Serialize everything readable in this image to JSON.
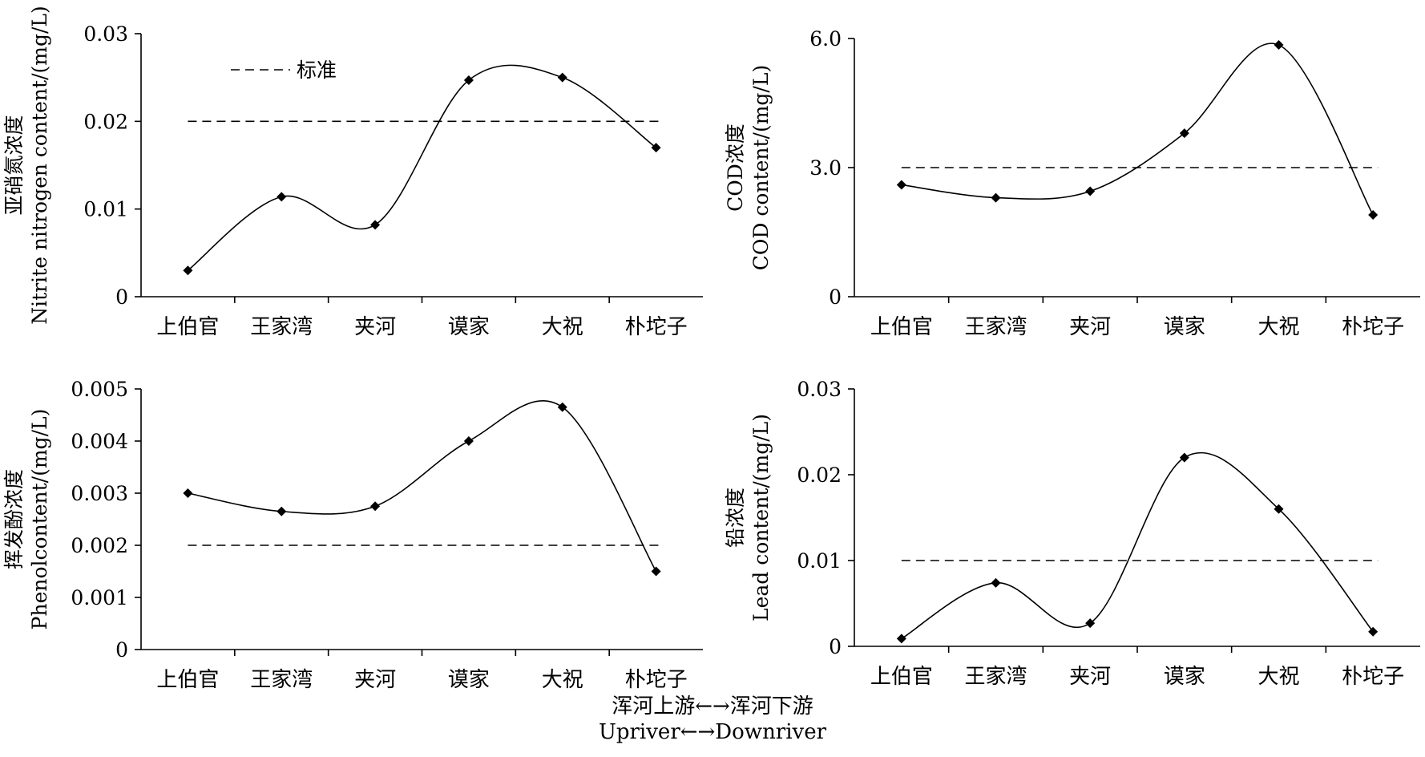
{
  "chart_data": [
    {
      "type": "line",
      "ylabel_cn": "亚硝氮浓度",
      "ylabel_en": "Nitrite nitrogen content/(mg/L)",
      "categories": [
        "上伯官",
        "王家湾",
        "夹河",
        "谟家",
        "大祝",
        "朴坨子"
      ],
      "y_ticks": [
        "0",
        "0.01",
        "0.02",
        "0.03"
      ],
      "ylim": [
        0,
        0.03
      ],
      "series": [
        {
          "values": [
            0.003,
            0.0114,
            0.0082,
            0.0247,
            0.025,
            0.017
          ]
        }
      ],
      "standard": 0.02,
      "legend_label": "标准",
      "smooth": true
    },
    {
      "type": "line",
      "ylabel_cn": "COD浓度",
      "ylabel_en": "COD content/(mg/L)",
      "categories": [
        "上伯官",
        "王家湾",
        "夹河",
        "谟家",
        "大祝",
        "朴坨子"
      ],
      "y_ticks": [
        "0",
        "3.0",
        "6.0"
      ],
      "ylim": [
        0,
        6
      ],
      "series": [
        {
          "values": [
            2.6,
            2.3,
            2.45,
            3.8,
            5.85,
            1.9
          ]
        }
      ],
      "standard": 3.0,
      "smooth": true
    },
    {
      "type": "line",
      "ylabel_cn": "挥发酚浓度",
      "ylabel_en": "Phenolcontent/(mg/L)",
      "categories": [
        "上伯官",
        "王家湾",
        "夹河",
        "谟家",
        "大祝",
        "朴坨子"
      ],
      "y_ticks": [
        "0",
        "0.001",
        "0.002",
        "0.003",
        "0.004",
        "0.005"
      ],
      "ylim": [
        0,
        0.005
      ],
      "series": [
        {
          "values": [
            0.003,
            0.00265,
            0.00275,
            0.004,
            0.00465,
            0.0015
          ]
        }
      ],
      "standard": 0.002,
      "smooth": true
    },
    {
      "type": "line",
      "ylabel_cn": "铅浓度",
      "ylabel_en": "Lead content/(mg/L)",
      "categories": [
        "上伯官",
        "王家湾",
        "夹河",
        "谟家",
        "大祝",
        "朴坨子"
      ],
      "y_ticks": [
        "0",
        "0.01",
        "0.02",
        "0.03"
      ],
      "ylim": [
        0,
        0.03
      ],
      "series": [
        {
          "values": [
            0.0009,
            0.0074,
            0.0027,
            0.022,
            0.016,
            0.0017
          ]
        }
      ],
      "standard": 0.01,
      "smooth": true
    }
  ],
  "xcaption": {
    "cn": "浑河上游←→浑河下游",
    "en": "Upriver←→Downriver"
  }
}
